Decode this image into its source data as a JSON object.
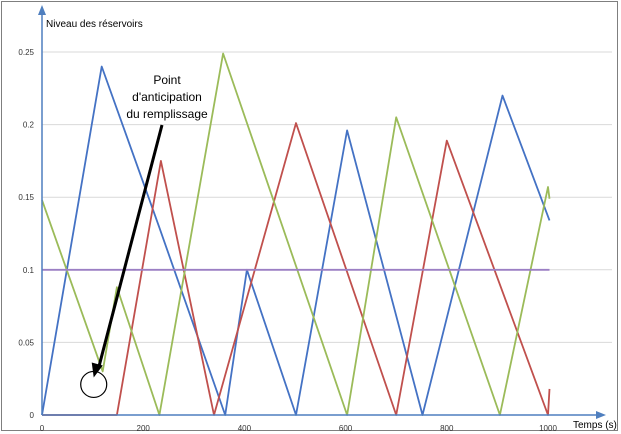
{
  "chart_data": {
    "type": "line",
    "title": "",
    "ylabel": "Niveau des réservoirs",
    "xlabel": "Temps (s)",
    "xlim": [
      0,
      1000
    ],
    "ylim": [
      0,
      0.25
    ],
    "x_ticks": [
      0,
      200,
      400,
      600,
      800,
      1000
    ],
    "y_ticks": [
      0,
      0.05,
      0.1,
      0.15,
      0.2,
      0.25
    ],
    "x_tick_labels": [
      "0",
      "200",
      "400",
      "600",
      "800",
      "1000"
    ],
    "y_tick_labels": [
      "0",
      "0.05",
      "0.1",
      "0.15",
      "0.2",
      "0.25"
    ],
    "grid": "horizontal",
    "legend": "none",
    "annotation": {
      "lines": [
        "Point",
        "d'anticipation",
        "du remplissage"
      ],
      "target": {
        "x": 120,
        "y": 0.03
      }
    },
    "series": [
      {
        "color": "#4472c4",
        "x": [
          0,
          118,
          232,
          362,
          405,
          502,
          603,
          752,
          910,
          1003
        ],
        "y": [
          0.0,
          0.24,
          0.129,
          0.0,
          0.1,
          0.0,
          0.196,
          0.0,
          0.22,
          0.134
        ]
      },
      {
        "color": "#c0504d",
        "x": [
          0,
          148,
          235,
          340,
          502,
          700,
          800,
          1000,
          1003
        ],
        "y": [
          0.0,
          0.0,
          0.175,
          0.0,
          0.201,
          0.0,
          0.189,
          0.0,
          0.018
        ]
      },
      {
        "color": "#9bbb59",
        "x": [
          0,
          120,
          148,
          232,
          358,
          603,
          700,
          905,
          1000,
          1003
        ],
        "y": [
          0.148,
          0.03,
          0.088,
          0.0,
          0.249,
          0.0,
          0.205,
          0.0,
          0.157,
          0.149
        ]
      },
      {
        "color": "#9b7fc4",
        "x": [
          0,
          1003
        ],
        "y": [
          0.1,
          0.1
        ]
      }
    ]
  }
}
